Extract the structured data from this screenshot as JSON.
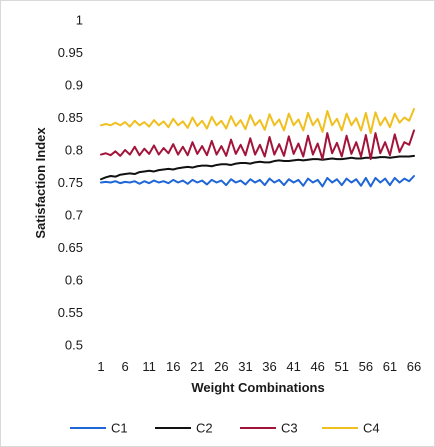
{
  "chart_data": {
    "type": "line",
    "title": "",
    "xlabel": "Weight Combinations",
    "ylabel": "Satisfaction Index",
    "xlim": [
      1,
      66
    ],
    "ylim": [
      0.5,
      1
    ],
    "y_ticks": [
      "0.5",
      "0.55",
      "0.6",
      "0.65",
      "0.7",
      "0.75",
      "0.8",
      "0.85",
      "0.9",
      "0.95",
      "1"
    ],
    "x_ticks": [
      "1",
      "6",
      "11",
      "16",
      "21",
      "26",
      "31",
      "36",
      "41",
      "46",
      "51",
      "56",
      "61",
      "66"
    ],
    "grid": false,
    "legend": "bottom",
    "x": [
      1,
      2,
      3,
      4,
      5,
      6,
      7,
      8,
      9,
      10,
      11,
      12,
      13,
      14,
      15,
      16,
      17,
      18,
      19,
      20,
      21,
      22,
      23,
      24,
      25,
      26,
      27,
      28,
      29,
      30,
      31,
      32,
      33,
      34,
      35,
      36,
      37,
      38,
      39,
      40,
      41,
      42,
      43,
      44,
      45,
      46,
      47,
      48,
      49,
      50,
      51,
      52,
      53,
      54,
      55,
      56,
      57,
      58,
      59,
      60,
      61,
      62,
      63,
      64,
      65,
      66
    ],
    "series": [
      {
        "name": "C1",
        "color": "#1f66d6",
        "values": [
          0.75,
          0.751,
          0.75,
          0.752,
          0.749,
          0.751,
          0.75,
          0.752,
          0.748,
          0.752,
          0.749,
          0.753,
          0.75,
          0.752,
          0.749,
          0.754,
          0.75,
          0.753,
          0.748,
          0.754,
          0.75,
          0.753,
          0.747,
          0.754,
          0.75,
          0.753,
          0.746,
          0.755,
          0.75,
          0.753,
          0.747,
          0.755,
          0.75,
          0.754,
          0.746,
          0.756,
          0.75,
          0.754,
          0.746,
          0.755,
          0.75,
          0.754,
          0.745,
          0.756,
          0.75,
          0.754,
          0.744,
          0.757,
          0.75,
          0.755,
          0.746,
          0.756,
          0.75,
          0.755,
          0.745,
          0.757,
          0.744,
          0.757,
          0.75,
          0.756,
          0.746,
          0.757,
          0.75,
          0.756,
          0.752,
          0.76
        ]
      },
      {
        "name": "C2",
        "color": "#111111",
        "values": [
          0.755,
          0.758,
          0.76,
          0.759,
          0.762,
          0.763,
          0.764,
          0.763,
          0.766,
          0.767,
          0.768,
          0.767,
          0.769,
          0.77,
          0.771,
          0.77,
          0.772,
          0.773,
          0.774,
          0.773,
          0.775,
          0.776,
          0.776,
          0.775,
          0.777,
          0.778,
          0.778,
          0.777,
          0.779,
          0.78,
          0.78,
          0.779,
          0.781,
          0.782,
          0.781,
          0.781,
          0.783,
          0.784,
          0.783,
          0.783,
          0.784,
          0.785,
          0.784,
          0.785,
          0.786,
          0.786,
          0.785,
          0.786,
          0.787,
          0.786,
          0.786,
          0.787,
          0.788,
          0.787,
          0.787,
          0.788,
          0.788,
          0.788,
          0.789,
          0.789,
          0.788,
          0.789,
          0.79,
          0.79,
          0.79,
          0.791
        ]
      },
      {
        "name": "C3",
        "color": "#a3143a",
        "values": [
          0.793,
          0.795,
          0.792,
          0.798,
          0.791,
          0.8,
          0.793,
          0.805,
          0.792,
          0.802,
          0.794,
          0.807,
          0.793,
          0.803,
          0.795,
          0.809,
          0.793,
          0.805,
          0.792,
          0.812,
          0.794,
          0.806,
          0.792,
          0.814,
          0.793,
          0.806,
          0.791,
          0.816,
          0.794,
          0.808,
          0.792,
          0.818,
          0.793,
          0.808,
          0.79,
          0.82,
          0.793,
          0.809,
          0.791,
          0.821,
          0.794,
          0.81,
          0.79,
          0.822,
          0.793,
          0.81,
          0.786,
          0.826,
          0.795,
          0.811,
          0.79,
          0.822,
          0.794,
          0.812,
          0.79,
          0.823,
          0.786,
          0.826,
          0.795,
          0.812,
          0.792,
          0.824,
          0.797,
          0.812,
          0.808,
          0.83
        ]
      },
      {
        "name": "C4",
        "color": "#f0c020",
        "values": [
          0.838,
          0.84,
          0.838,
          0.842,
          0.838,
          0.843,
          0.836,
          0.845,
          0.838,
          0.843,
          0.836,
          0.846,
          0.838,
          0.844,
          0.835,
          0.848,
          0.838,
          0.844,
          0.834,
          0.85,
          0.837,
          0.845,
          0.833,
          0.851,
          0.838,
          0.845,
          0.833,
          0.852,
          0.837,
          0.846,
          0.832,
          0.854,
          0.838,
          0.846,
          0.831,
          0.855,
          0.838,
          0.847,
          0.83,
          0.856,
          0.838,
          0.847,
          0.83,
          0.857,
          0.838,
          0.848,
          0.828,
          0.86,
          0.838,
          0.848,
          0.83,
          0.856,
          0.838,
          0.849,
          0.83,
          0.857,
          0.826,
          0.858,
          0.838,
          0.85,
          0.835,
          0.856,
          0.842,
          0.85,
          0.845,
          0.863
        ]
      }
    ]
  }
}
